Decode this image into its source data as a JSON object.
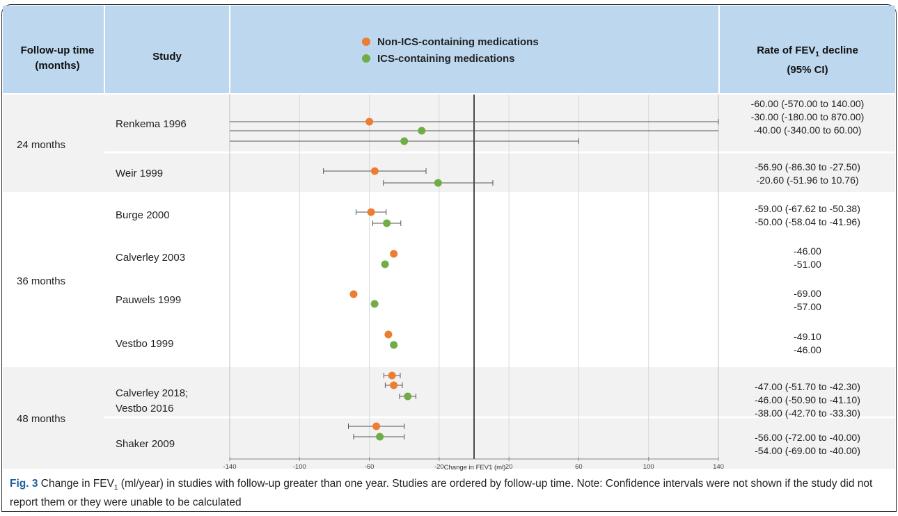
{
  "headers": {
    "followup_line1": "Follow-up time",
    "followup_line2": "(months)",
    "study": "Study",
    "rate_line1_a": "Rate of FEV",
    "rate_line1_sub": "1",
    "rate_line1_b": " decline",
    "rate_line2": "(95% CI)"
  },
  "groups": [
    {
      "label": "24 months"
    },
    {
      "label": "36 months"
    },
    {
      "label": "48 months"
    }
  ],
  "studies": [
    {
      "name_lines": [
        "Renkema 1996"
      ],
      "rates": [
        "-60.00 (-570.00 to 140.00)",
        "-30.00 (-180.00 to 870.00)",
        "-40.00 (-340.00 to 60.00)"
      ]
    },
    {
      "name_lines": [
        "Weir 1999"
      ],
      "rates": [
        "-56.90 (-86.30 to -27.50)",
        "-20.60 (-51.96 to 10.76)"
      ]
    },
    {
      "name_lines": [
        "Burge 2000"
      ],
      "rates": [
        "-59.00 (-67.62 to -50.38)",
        "-50.00 (-58.04 to -41.96)"
      ]
    },
    {
      "name_lines": [
        "Calverley 2003"
      ],
      "rates": [
        "-46.00",
        "-51.00"
      ]
    },
    {
      "name_lines": [
        "Pauwels 1999"
      ],
      "rates": [
        "-69.00",
        "-57.00"
      ]
    },
    {
      "name_lines": [
        "Vestbo 1999"
      ],
      "rates": [
        "-49.10",
        "-46.00"
      ]
    },
    {
      "name_lines": [
        "Calverley 2018;",
        "Vestbo 2016"
      ],
      "rates": [
        "-47.00 (-51.70 to -42.30)",
        "-46.00 (-50.90 to -41.10)",
        "-38.00 (-42.70 to -33.30)"
      ]
    },
    {
      "name_lines": [
        "Shaker 2009"
      ],
      "rates": [
        "-56.00 (-72.00 to -40.00)",
        "-54.00 (-69.00 to -40.00)"
      ]
    }
  ],
  "caption": {
    "fig_label": "Fig. 3",
    "text_a": " Change in FEV",
    "text_sub": "1",
    "text_b": " (ml/year) in studies with follow-up greater than one year. Studies are ordered by follow-up time. Note: Confidence intervals were not shown if the study did not report them or they were unable to be calculated"
  },
  "colors": {
    "non_ics": "#ed7d31",
    "ics": "#70ad47",
    "header_bg": "#bdd7ee",
    "band_bg": "#f2f2f2"
  },
  "chart_data": {
    "type": "scatter",
    "subtype": "forest-plot",
    "xlabel": "Change in FEV1 (ml)",
    "xlim": [
      -140,
      140
    ],
    "xticks": [
      -140,
      -100,
      -60,
      -20,
      20,
      60,
      100,
      140
    ],
    "reference_line": 0,
    "grid": true,
    "legend": {
      "placement": "top-center",
      "entries": [
        "Non-ICS-containing medications",
        "ICS-containing medications"
      ]
    },
    "series": [
      {
        "name": "Non-ICS-containing medications",
        "color": "#ed7d31"
      },
      {
        "name": "ICS-containing medications",
        "color": "#70ad47"
      }
    ],
    "points": [
      {
        "study": "Renkema 1996",
        "series": "Non-ICS-containing medications",
        "x": -60,
        "ci": [
          -570,
          140
        ]
      },
      {
        "study": "Renkema 1996",
        "series": "ICS-containing medications",
        "x": -30,
        "ci": [
          -180,
          870
        ]
      },
      {
        "study": "Renkema 1996",
        "series": "ICS-containing medications",
        "x": -40,
        "ci": [
          -340,
          60
        ]
      },
      {
        "study": "Weir 1999",
        "series": "Non-ICS-containing medications",
        "x": -56.9,
        "ci": [
          -86.3,
          -27.5
        ]
      },
      {
        "study": "Weir 1999",
        "series": "ICS-containing medications",
        "x": -20.6,
        "ci": [
          -51.96,
          10.76
        ]
      },
      {
        "study": "Burge 2000",
        "series": "Non-ICS-containing medications",
        "x": -59,
        "ci": [
          -67.62,
          -50.38
        ]
      },
      {
        "study": "Burge 2000",
        "series": "ICS-containing medications",
        "x": -50,
        "ci": [
          -58.04,
          -41.96
        ]
      },
      {
        "study": "Calverley 2003",
        "series": "Non-ICS-containing medications",
        "x": -46,
        "ci": null
      },
      {
        "study": "Calverley 2003",
        "series": "ICS-containing medications",
        "x": -51,
        "ci": null
      },
      {
        "study": "Pauwels 1999",
        "series": "Non-ICS-containing medications",
        "x": -69,
        "ci": null
      },
      {
        "study": "Pauwels 1999",
        "series": "ICS-containing medications",
        "x": -57,
        "ci": null
      },
      {
        "study": "Vestbo 1999",
        "series": "Non-ICS-containing medications",
        "x": -49.1,
        "ci": null
      },
      {
        "study": "Vestbo 1999",
        "series": "ICS-containing medications",
        "x": -46,
        "ci": null
      },
      {
        "study": "Calverley 2018; Vestbo 2016",
        "series": "Non-ICS-containing medications",
        "x": -47,
        "ci": [
          -51.7,
          -42.3
        ]
      },
      {
        "study": "Calverley 2018; Vestbo 2016",
        "series": "Non-ICS-containing medications",
        "x": -46,
        "ci": [
          -50.9,
          -41.1
        ]
      },
      {
        "study": "Calverley 2018; Vestbo 2016",
        "series": "ICS-containing medications",
        "x": -38,
        "ci": [
          -42.7,
          -33.3
        ]
      },
      {
        "study": "Shaker 2009",
        "series": "Non-ICS-containing medications",
        "x": -56,
        "ci": [
          -72,
          -40
        ]
      },
      {
        "study": "Shaker 2009",
        "series": "ICS-containing medications",
        "x": -54,
        "ci": [
          -69,
          -40
        ]
      }
    ]
  }
}
